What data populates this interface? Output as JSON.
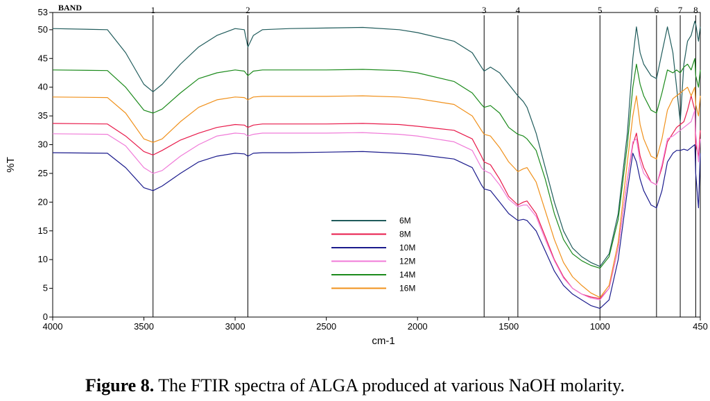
{
  "chart_data": {
    "type": "line",
    "title": "",
    "xlabel": "cm-1",
    "ylabel": "%T",
    "xlim": [
      4000,
      450
    ],
    "ylim": [
      0,
      53
    ],
    "x_ticks": [
      4000,
      3500,
      3000,
      2500,
      2000,
      1500,
      1000,
      450
    ],
    "y_ticks": [
      0,
      5,
      10,
      15,
      20,
      25,
      30,
      35,
      40,
      45,
      50,
      53
    ],
    "band_header": "BAND",
    "bands": [
      {
        "label": "1",
        "x": 3450
      },
      {
        "label": "2",
        "x": 2930
      },
      {
        "label": "3",
        "x": 1635
      },
      {
        "label": "4",
        "x": 1450
      },
      {
        "label": "5",
        "x": 1000
      },
      {
        "label": "6",
        "x": 690
      },
      {
        "label": "7",
        "x": 560
      },
      {
        "label": "8",
        "x": 475
      }
    ],
    "x": [
      4000,
      3700,
      3600,
      3500,
      3450,
      3400,
      3300,
      3200,
      3100,
      3000,
      2950,
      2930,
      2900,
      2850,
      2700,
      2500,
      2300,
      2100,
      2000,
      1800,
      1700,
      1650,
      1635,
      1600,
      1550,
      1500,
      1450,
      1420,
      1400,
      1350,
      1300,
      1250,
      1200,
      1150,
      1100,
      1050,
      1000,
      950,
      900,
      850,
      820,
      800,
      780,
      760,
      720,
      690,
      660,
      630,
      600,
      580,
      560,
      540,
      520,
      500,
      480,
      475,
      460,
      450
    ],
    "series": [
      {
        "name": "6M",
        "color": "#1f5b5b",
        "values": [
          50.2,
          50.0,
          46.0,
          40.5,
          39.2,
          40.5,
          44.0,
          47.0,
          49.0,
          50.2,
          50.0,
          47.0,
          49.0,
          50.0,
          50.2,
          50.3,
          50.4,
          50.0,
          49.5,
          48.0,
          46.0,
          43.5,
          42.8,
          43.5,
          42.5,
          40.5,
          38.5,
          37.5,
          36.5,
          32.0,
          26.0,
          20.0,
          15.0,
          12.0,
          10.5,
          9.5,
          8.8,
          11.0,
          18.0,
          32.0,
          45.0,
          50.5,
          46.0,
          44.0,
          42.0,
          41.5,
          46.0,
          50.5,
          46.0,
          40.0,
          34.0,
          44.0,
          48.0,
          49.0,
          51.5,
          51.0,
          48.0,
          50.5
        ]
      },
      {
        "name": "8M",
        "color": "#e8194a",
        "values": [
          33.7,
          33.6,
          31.5,
          28.8,
          28.2,
          29.0,
          30.8,
          32.0,
          33.0,
          33.5,
          33.4,
          33.0,
          33.4,
          33.6,
          33.6,
          33.6,
          33.7,
          33.5,
          33.2,
          32.5,
          31.0,
          28.0,
          27.0,
          26.5,
          24.0,
          21.0,
          19.5,
          20.0,
          20.2,
          18.0,
          14.0,
          10.0,
          7.0,
          5.0,
          4.0,
          3.5,
          3.2,
          5.0,
          12.0,
          24.0,
          30.0,
          32.0,
          28.0,
          26.0,
          23.5,
          23.0,
          26.0,
          30.5,
          32.0,
          33.0,
          33.5,
          34.0,
          36.0,
          38.5,
          36.0,
          30.0,
          28.0,
          32.5
        ]
      },
      {
        "name": "10M",
        "color": "#1a1a8c",
        "values": [
          28.6,
          28.5,
          26.0,
          22.5,
          22.0,
          22.8,
          25.0,
          27.0,
          28.0,
          28.5,
          28.4,
          28.0,
          28.5,
          28.6,
          28.6,
          28.7,
          28.8,
          28.5,
          28.3,
          27.5,
          26.0,
          23.0,
          22.3,
          22.0,
          20.0,
          18.0,
          16.8,
          17.0,
          16.8,
          15.0,
          11.5,
          8.0,
          5.5,
          4.0,
          3.0,
          2.0,
          1.5,
          3.0,
          10.0,
          22.0,
          28.5,
          27.0,
          24.0,
          22.0,
          19.5,
          19.0,
          22.0,
          27.0,
          28.5,
          29.0,
          29.0,
          29.2,
          29.0,
          29.5,
          30.0,
          25.0,
          19.0,
          28.5
        ]
      },
      {
        "name": "12M",
        "color": "#f07ad8",
        "values": [
          31.9,
          31.8,
          29.8,
          26.0,
          25.0,
          25.5,
          28.0,
          30.0,
          31.5,
          32.0,
          31.9,
          31.5,
          31.8,
          32.0,
          32.0,
          32.0,
          32.1,
          31.8,
          31.5,
          30.5,
          29.0,
          26.0,
          25.5,
          25.0,
          23.0,
          20.5,
          19.2,
          19.5,
          19.5,
          17.5,
          13.5,
          9.8,
          6.8,
          5.0,
          4.0,
          3.3,
          3.0,
          5.0,
          12.0,
          24.0,
          30.5,
          31.0,
          27.0,
          25.0,
          23.5,
          23.0,
          26.5,
          31.0,
          31.5,
          32.0,
          32.5,
          33.0,
          33.5,
          34.0,
          36.0,
          32.0,
          27.0,
          31.0
        ]
      },
      {
        "name": "14M",
        "color": "#1b8a1b",
        "values": [
          43.0,
          42.9,
          40.0,
          36.0,
          35.5,
          36.2,
          39.0,
          41.5,
          42.5,
          43.0,
          42.8,
          42.0,
          42.8,
          43.0,
          43.0,
          43.0,
          43.1,
          42.9,
          42.5,
          41.0,
          39.0,
          37.0,
          36.5,
          36.8,
          35.5,
          33.0,
          31.8,
          31.5,
          31.0,
          29.0,
          24.0,
          18.0,
          13.5,
          11.0,
          9.8,
          9.0,
          8.5,
          10.5,
          17.0,
          30.0,
          40.0,
          44.0,
          40.5,
          38.5,
          36.0,
          35.5,
          39.0,
          43.0,
          42.5,
          43.0,
          42.5,
          43.5,
          44.0,
          43.0,
          45.0,
          42.0,
          40.0,
          43.0
        ]
      },
      {
        "name": "16M",
        "color": "#f0901a",
        "values": [
          38.3,
          38.2,
          35.5,
          31.0,
          30.4,
          31.0,
          34.0,
          36.5,
          37.8,
          38.3,
          38.2,
          37.8,
          38.3,
          38.4,
          38.4,
          38.4,
          38.5,
          38.3,
          38.0,
          37.0,
          35.0,
          32.5,
          31.8,
          31.5,
          29.5,
          27.0,
          25.3,
          25.8,
          26.0,
          23.5,
          18.5,
          13.5,
          9.5,
          7.0,
          5.5,
          4.2,
          3.4,
          5.5,
          13.0,
          27.0,
          35.0,
          38.5,
          33.5,
          31.0,
          28.0,
          27.5,
          31.0,
          36.0,
          38.0,
          38.5,
          39.0,
          39.5,
          40.0,
          38.5,
          40.0,
          37.0,
          35.0,
          38.5
        ]
      }
    ]
  },
  "caption": {
    "bold": "Figure 8.",
    "text": " The FTIR spectra of ALGA produced at various NaOH molarity."
  }
}
